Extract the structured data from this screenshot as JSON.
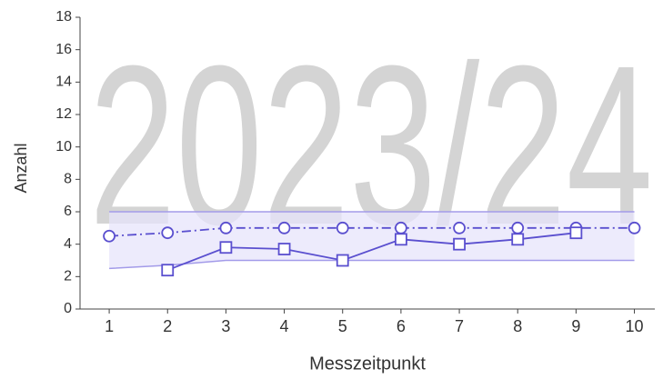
{
  "chart_data": {
    "type": "line",
    "watermark": "2023/24",
    "x_label": "Messzeitpunkt",
    "y_label": "Anzahl",
    "x": [
      1,
      2,
      3,
      4,
      5,
      6,
      7,
      8,
      9,
      10
    ],
    "series": [
      {
        "color": "#5a4fcf",
        "marker": "circle",
        "dash": "dashdot",
        "values": [
          4.5,
          4.7,
          5.0,
          5.0,
          5.0,
          5.0,
          5.0,
          5.0,
          5.0,
          5.0
        ]
      },
      {
        "color": "#5a4fcf",
        "marker": "square",
        "dash": "solid",
        "values": [
          null,
          2.4,
          3.8,
          3.7,
          3.0,
          4.3,
          4.0,
          4.3,
          4.7,
          null
        ]
      }
    ],
    "band": {
      "color": "#e7e4fb",
      "edge_color": "#a39be9",
      "upper": [
        6,
        6,
        6,
        6,
        6,
        6,
        6,
        6,
        6,
        6
      ],
      "lower": [
        2.5,
        2.7,
        3,
        3,
        3,
        3,
        3,
        3,
        3,
        3
      ]
    },
    "xlim": [
      0.5,
      10.35
    ],
    "xticks": [
      1,
      2,
      3,
      4,
      5,
      6,
      7,
      8,
      9,
      10
    ],
    "ylim": [
      0,
      18
    ],
    "yticks": [
      0,
      2,
      4,
      6,
      8,
      10,
      12,
      14,
      16,
      18
    ]
  }
}
